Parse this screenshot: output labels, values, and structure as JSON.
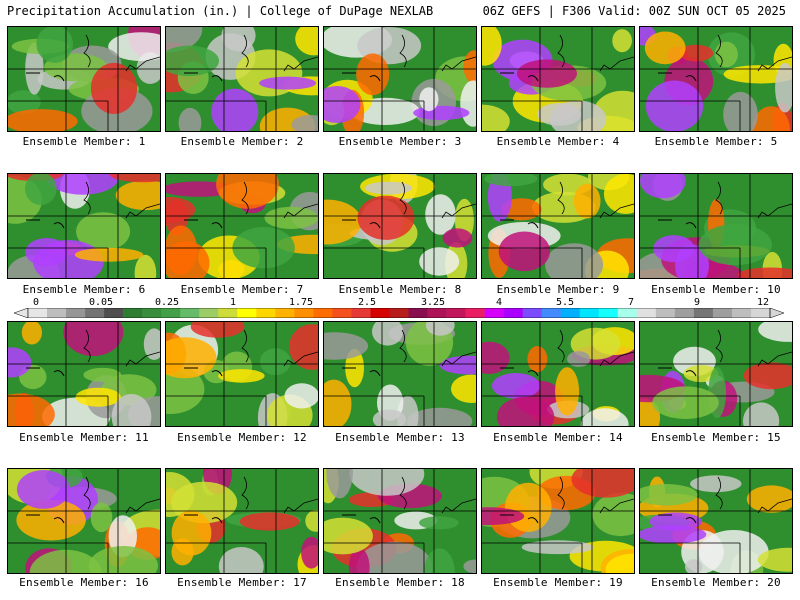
{
  "header": {
    "left": "Precipitation Accumulation (in.) | College of DuPage NEXLAB",
    "right": "06Z GEFS | F306 Valid: 00Z SUN OCT 05 2025"
  },
  "panels": [
    {
      "caption": "Ensemble Member: 1"
    },
    {
      "caption": "Ensemble Member: 2"
    },
    {
      "caption": "Ensemble Member: 3"
    },
    {
      "caption": "Ensemble Member: 4"
    },
    {
      "caption": "Ensemble Member: 5"
    },
    {
      "caption": "Ensemble Member: 6"
    },
    {
      "caption": "Ensemble Member: 7"
    },
    {
      "caption": "Ensemble Member: 8"
    },
    {
      "caption": "Ensemble Member: 9"
    },
    {
      "caption": "Ensemble Member: 10"
    },
    {
      "caption": "Ensemble Member: 11"
    },
    {
      "caption": "Ensemble Member: 12"
    },
    {
      "caption": "Ensemble Member: 13"
    },
    {
      "caption": "Ensemble Member: 14"
    },
    {
      "caption": "Ensemble Member: 15"
    },
    {
      "caption": "Ensemble Member: 16"
    },
    {
      "caption": "Ensemble Member: 17"
    },
    {
      "caption": "Ensemble Member: 18"
    },
    {
      "caption": "Ensemble Member: 19"
    },
    {
      "caption": "Ensemble Member: 20"
    }
  ],
  "colorbar": {
    "labels": [
      "0",
      "0.05",
      "0.25",
      "1",
      "1.75",
      "2.5",
      "3.25",
      "4",
      "5.5",
      "7",
      "9",
      "12"
    ],
    "colors": [
      "#e6e6e6",
      "#bdbdbd",
      "#969696",
      "#737373",
      "#4f4f4f",
      "#2e7d32",
      "#388e3c",
      "#43a047",
      "#66bb6a",
      "#9ccc65",
      "#cddc39",
      "#ffff00",
      "#ffd600",
      "#ffb300",
      "#ff8f00",
      "#ff6d00",
      "#f4511e",
      "#e53935",
      "#d50000",
      "#b71c1c",
      "#880e4f",
      "#ad1457",
      "#c2185b",
      "#e91e63",
      "#d500f9",
      "#aa00ff",
      "#7c4dff",
      "#448aff",
      "#00b0ff",
      "#00e5ff",
      "#18ffff",
      "#a7ffeb",
      "#e0e0e0",
      "#bdbdbd",
      "#9e9e9e",
      "#757575",
      "#9e9e9e",
      "#bdbdbd",
      "#d6d6d6"
    ]
  }
}
